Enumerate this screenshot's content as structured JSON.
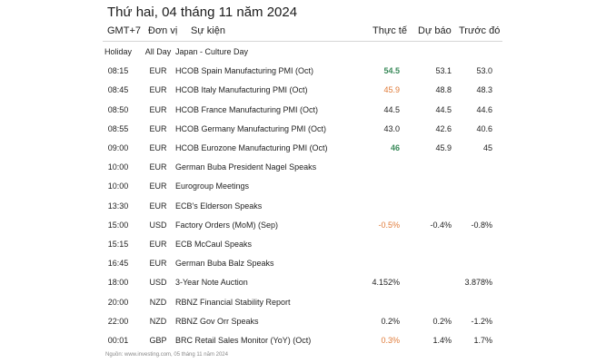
{
  "title": "Thứ hai, 04 tháng 11 năm 2024",
  "headers": {
    "tz": "GMT+7",
    "unit": "Đơn vị",
    "event": "Sự kiện",
    "actual": "Thực tế",
    "forecast": "Dự báo",
    "previous": "Trước đó"
  },
  "rows": [
    {
      "time": "Holiday",
      "cur": "All Day",
      "event": "Japan - Culture Day",
      "actual": "",
      "forecast": "",
      "previous": "",
      "actual_style": ""
    },
    {
      "time": "08:15",
      "cur": "EUR",
      "event": "HCOB Spain Manufacturing PMI (Oct)",
      "actual": "54.5",
      "forecast": "53.1",
      "previous": "53.0",
      "actual_style": "green"
    },
    {
      "time": "08:45",
      "cur": "EUR",
      "event": "HCOB Italy Manufacturing PMI (Oct)",
      "actual": "45.9",
      "forecast": "48.8",
      "previous": "48.3",
      "actual_style": "orange"
    },
    {
      "time": "08:50",
      "cur": "EUR",
      "event": "HCOB France Manufacturing PMI (Oct)",
      "actual": "44.5",
      "forecast": "44.5",
      "previous": "44.6",
      "actual_style": ""
    },
    {
      "time": "08:55",
      "cur": "EUR",
      "event": "HCOB Germany Manufacturing PMI (Oct)",
      "actual": "43.0",
      "forecast": "42.6",
      "previous": "40.6",
      "actual_style": ""
    },
    {
      "time": "09:00",
      "cur": "EUR",
      "event": "HCOB Eurozone Manufacturing PMI (Oct)",
      "actual": "46",
      "forecast": "45.9",
      "previous": "45",
      "actual_style": "green"
    },
    {
      "time": "10:00",
      "cur": "EUR",
      "event": "German Buba President Nagel Speaks",
      "actual": "",
      "forecast": "",
      "previous": "",
      "actual_style": ""
    },
    {
      "time": "10:00",
      "cur": "EUR",
      "event": "Eurogroup Meetings",
      "actual": "",
      "forecast": "",
      "previous": "",
      "actual_style": ""
    },
    {
      "time": "13:30",
      "cur": "EUR",
      "event": "ECB's Elderson Speaks",
      "actual": "",
      "forecast": "",
      "previous": "",
      "actual_style": ""
    },
    {
      "time": "15:00",
      "cur": "USD",
      "event": "Factory Orders (MoM) (Sep)",
      "actual": "-0.5%",
      "forecast": "-0.4%",
      "previous": "-0.8%",
      "actual_style": "orange"
    },
    {
      "time": "15:15",
      "cur": "EUR",
      "event": "ECB McCaul Speaks",
      "actual": "",
      "forecast": "",
      "previous": "",
      "actual_style": ""
    },
    {
      "time": "16:45",
      "cur": "EUR",
      "event": "German Buba Balz Speaks",
      "actual": "",
      "forecast": "",
      "previous": "",
      "actual_style": ""
    },
    {
      "time": "18:00",
      "cur": "USD",
      "event": "3-Year Note Auction",
      "actual": "4.152%",
      "forecast": "",
      "previous": "3.878%",
      "actual_style": ""
    },
    {
      "time": "20:00",
      "cur": "NZD",
      "event": "RBNZ Financial Stability Report",
      "actual": "",
      "forecast": "",
      "previous": "",
      "actual_style": ""
    },
    {
      "time": "22:00",
      "cur": "NZD",
      "event": "RBNZ Gov Orr Speaks",
      "actual": "0.2%",
      "forecast": "0.2%",
      "previous": "-1.2%",
      "actual_style": ""
    },
    {
      "time": "00:01",
      "cur": "GBP",
      "event": "BRC Retail Sales Monitor (YoY) (Oct)",
      "actual": "0.3%",
      "forecast": "1.4%",
      "previous": "1.7%",
      "actual_style": "orange"
    }
  ],
  "colors": {
    "better": "#3a8a5a",
    "worse": "#e07b39",
    "divider": "#d6d6d6"
  },
  "footer": "Nguồn: www.investing.com, 05 tháng 11 năm 2024"
}
